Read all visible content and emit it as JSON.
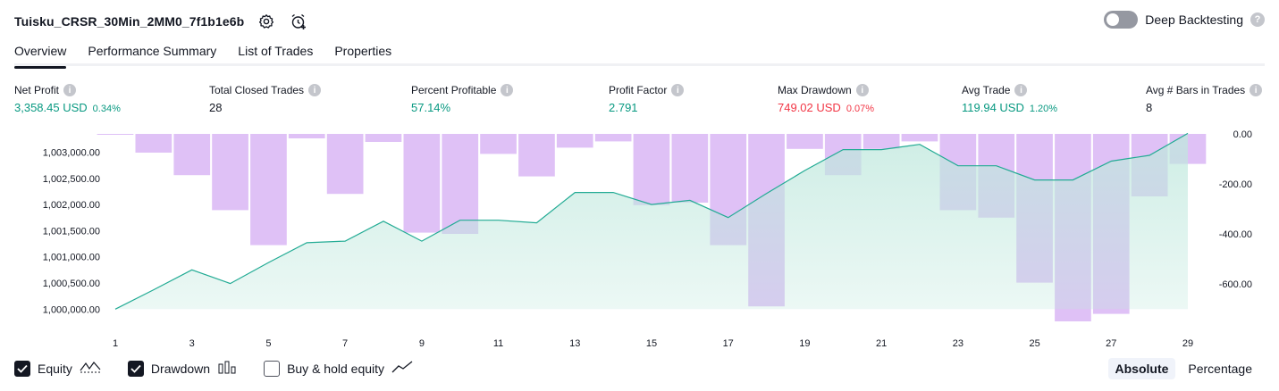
{
  "header": {
    "strategy_name": "Tuisku_CRSR_30Min_2MM0_7f1b1e6b",
    "settings_icon": "gear-icon",
    "alert_icon": "alarm-clock-plus-icon"
  },
  "deep_backtesting": {
    "label": "Deep Backtesting",
    "help": "?"
  },
  "tabs": [
    {
      "label": "Overview"
    },
    {
      "label": "Performance Summary"
    },
    {
      "label": "List of Trades"
    },
    {
      "label": "Properties"
    }
  ],
  "metrics": {
    "net_profit": {
      "label": "Net Profit",
      "value": "3,358.45 USD",
      "pct": "0.34%"
    },
    "total_closed_trades": {
      "label": "Total Closed Trades",
      "value": "28"
    },
    "percent_profitable": {
      "label": "Percent Profitable",
      "value": "57.14%"
    },
    "profit_factor": {
      "label": "Profit Factor",
      "value": "2.791"
    },
    "max_drawdown": {
      "label": "Max Drawdown",
      "value": "749.02 USD",
      "pct": "0.07%"
    },
    "avg_trade": {
      "label": "Avg Trade",
      "value": "119.94 USD",
      "pct": "1.20%"
    },
    "avg_bars": {
      "label": "Avg # Bars in Trades",
      "value": "8"
    },
    "info_glyph": "i"
  },
  "chart_data": {
    "type": "area",
    "x": [
      1,
      2,
      3,
      4,
      5,
      6,
      7,
      8,
      9,
      10,
      11,
      12,
      13,
      14,
      15,
      16,
      17,
      18,
      19,
      20,
      21,
      22,
      23,
      24,
      25,
      26,
      27,
      28,
      29
    ],
    "x_tick_labels": [
      "1",
      "3",
      "5",
      "7",
      "9",
      "11",
      "13",
      "15",
      "17",
      "19",
      "21",
      "23",
      "25",
      "27",
      "29"
    ],
    "series": [
      {
        "name": "Equity",
        "axis": "left",
        "values": [
          1000000,
          1000370,
          1000750,
          1000490,
          1000890,
          1001270,
          1001300,
          1001680,
          1001300,
          1001700,
          1001700,
          1001650,
          1002230,
          1002230,
          1002000,
          1002080,
          1001750,
          1002210,
          1002650,
          1003050,
          1003050,
          1003150,
          1002740,
          1002740,
          1002470,
          1002470,
          1002830,
          1002940,
          1003360
        ]
      },
      {
        "name": "Drawdown",
        "axis": "right",
        "values": [
          0,
          -75,
          -165,
          -305,
          -445,
          -18,
          -240,
          -32,
          -395,
          -400,
          -80,
          -170,
          -55,
          -30,
          -285,
          -275,
          -445,
          -690,
          -60,
          -165,
          -60,
          -30,
          -305,
          -335,
          -595,
          -750,
          -720,
          -250,
          -120
        ]
      }
    ],
    "left_axis": {
      "ylim": [
        999800,
        1003350
      ],
      "tick_labels": [
        "1,003,000.00",
        "1,002,500.00",
        "1,002,000.00",
        "1,001,500.00",
        "1,001,000.00",
        "1,000,500.00",
        "1,000,000.00"
      ],
      "tick_values": [
        1003000,
        1002500,
        1002000,
        1001500,
        1001000,
        1000500,
        1000000
      ]
    },
    "right_axis": {
      "ylim": [
        -750,
        0
      ],
      "tick_labels": [
        "0.00",
        "-200.00",
        "-400.00",
        "-600.00"
      ],
      "tick_values": [
        0,
        -200,
        -400,
        -600
      ]
    },
    "colors": {
      "equity_line": "#22ab94",
      "equity_fill": "#bfe8dd",
      "drawdown_fill": "#d9b6f5"
    }
  },
  "legend": {
    "equity": {
      "label": "Equity",
      "checked": true
    },
    "drawdown": {
      "label": "Drawdown",
      "checked": true
    },
    "buy_hold": {
      "label": "Buy & hold equity",
      "checked": false
    }
  },
  "mode": {
    "absolute": "Absolute",
    "percentage": "Percentage"
  }
}
